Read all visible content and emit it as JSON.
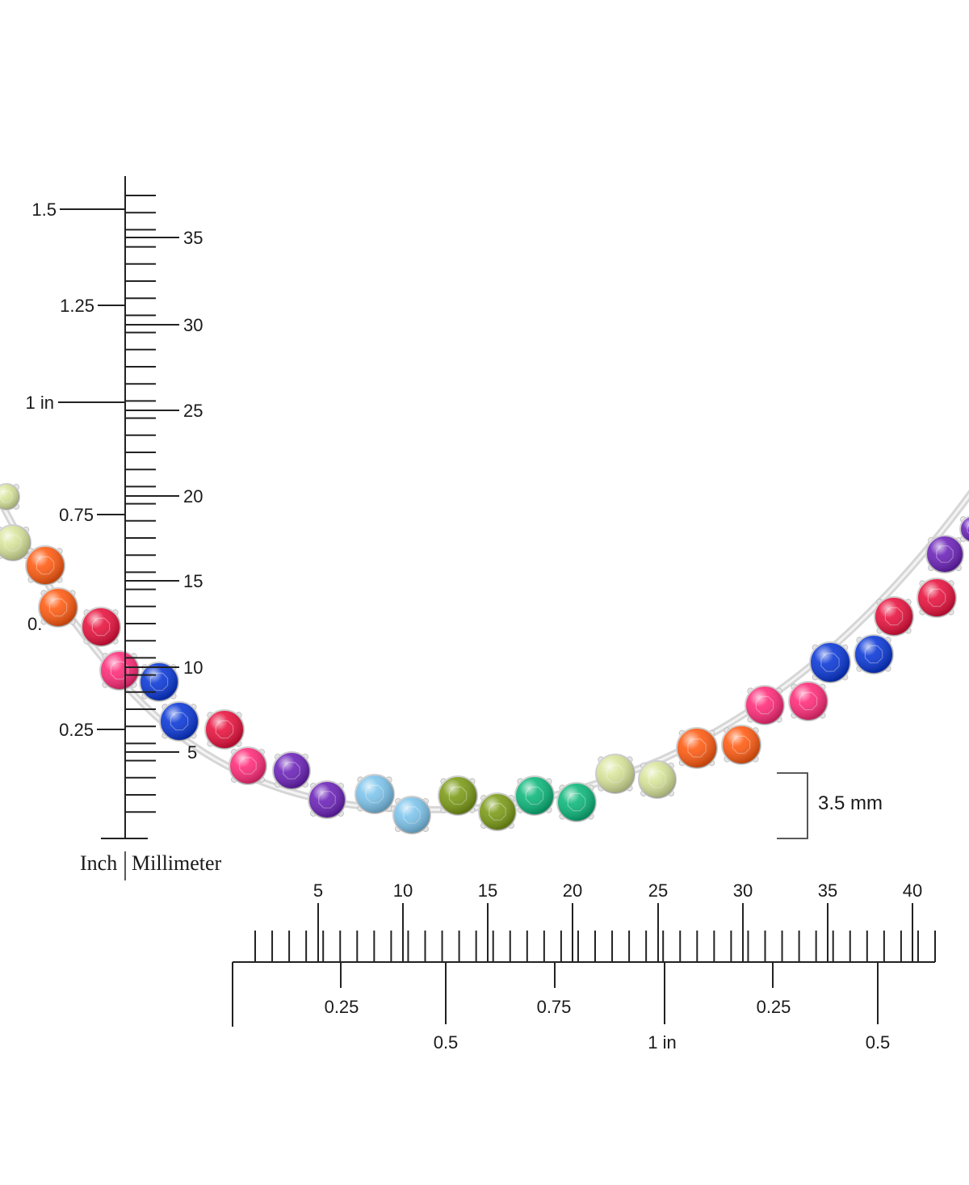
{
  "vertical_ruler": {
    "inch_labels": [
      "1.5",
      "1.25",
      "1 in",
      "0.75",
      "0.",
      "0.25"
    ],
    "mm_labels": [
      "35",
      "30",
      "25",
      "20",
      "15",
      "10",
      "5"
    ],
    "inch_caption": "Inch",
    "mm_caption": "Millimeter"
  },
  "horizontal_ruler": {
    "mm_labels": [
      "5",
      "10",
      "15",
      "20",
      "25",
      "30",
      "35",
      "40"
    ],
    "inch_labels_upper": [
      "0.25",
      "0.75",
      "0.25"
    ],
    "inch_labels_lower": [
      "0.5",
      "1 in",
      "0.5"
    ]
  },
  "dimension": {
    "label": "3.5 mm"
  },
  "stone_colors": {
    "peridot_pale": "#d8e59a",
    "orange": "#ff5a10",
    "ruby": "#e8103c",
    "pink": "#ff2a78",
    "sapphire": "#0836d6",
    "amethyst": "#6a20b8",
    "aquamarine": "#7cc4ec",
    "olive": "#7a9a14",
    "emerald": "#0ab67a"
  }
}
